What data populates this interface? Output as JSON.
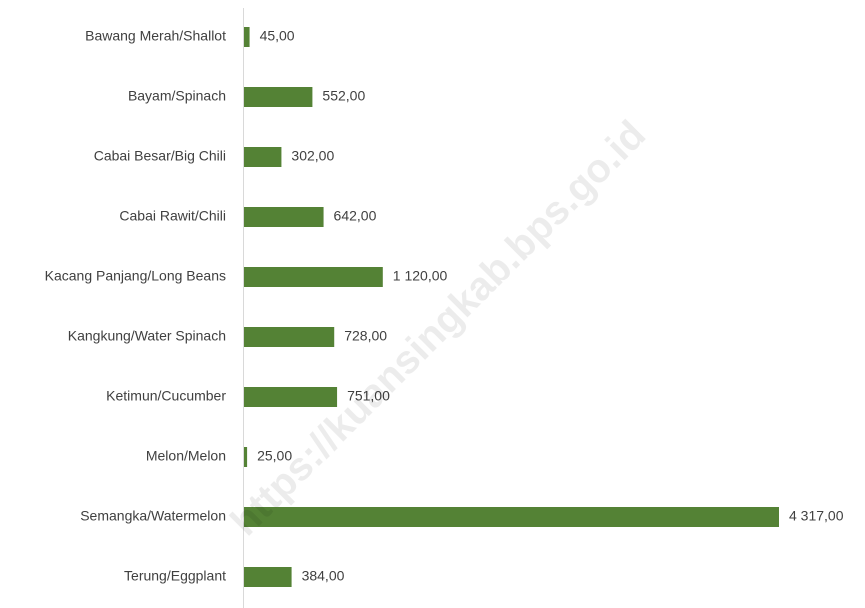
{
  "chart_data": {
    "type": "bar",
    "orientation": "horizontal",
    "categories": [
      "Bawang Merah/Shallot",
      "Bayam/Spinach",
      "Cabai Besar/Big Chili",
      "Cabai Rawit/Chili",
      "Kacang Panjang/Long Beans",
      "Kangkung/Water Spinach",
      "Ketimun/Cucumber",
      "Melon/Melon",
      "Semangka/Watermelon",
      "Terung/Eggplant"
    ],
    "values": [
      45,
      552,
      302,
      642,
      1120,
      728,
      751,
      25,
      4317,
      384
    ],
    "value_labels": [
      "45,00",
      "552,00",
      "302,00",
      "642,00",
      "1 120,00",
      "728,00",
      "751,00",
      "25,00",
      "4 317,00",
      "384,00"
    ],
    "color": "#548235",
    "watermark": "https://kuansingkab.bps.go.id"
  }
}
